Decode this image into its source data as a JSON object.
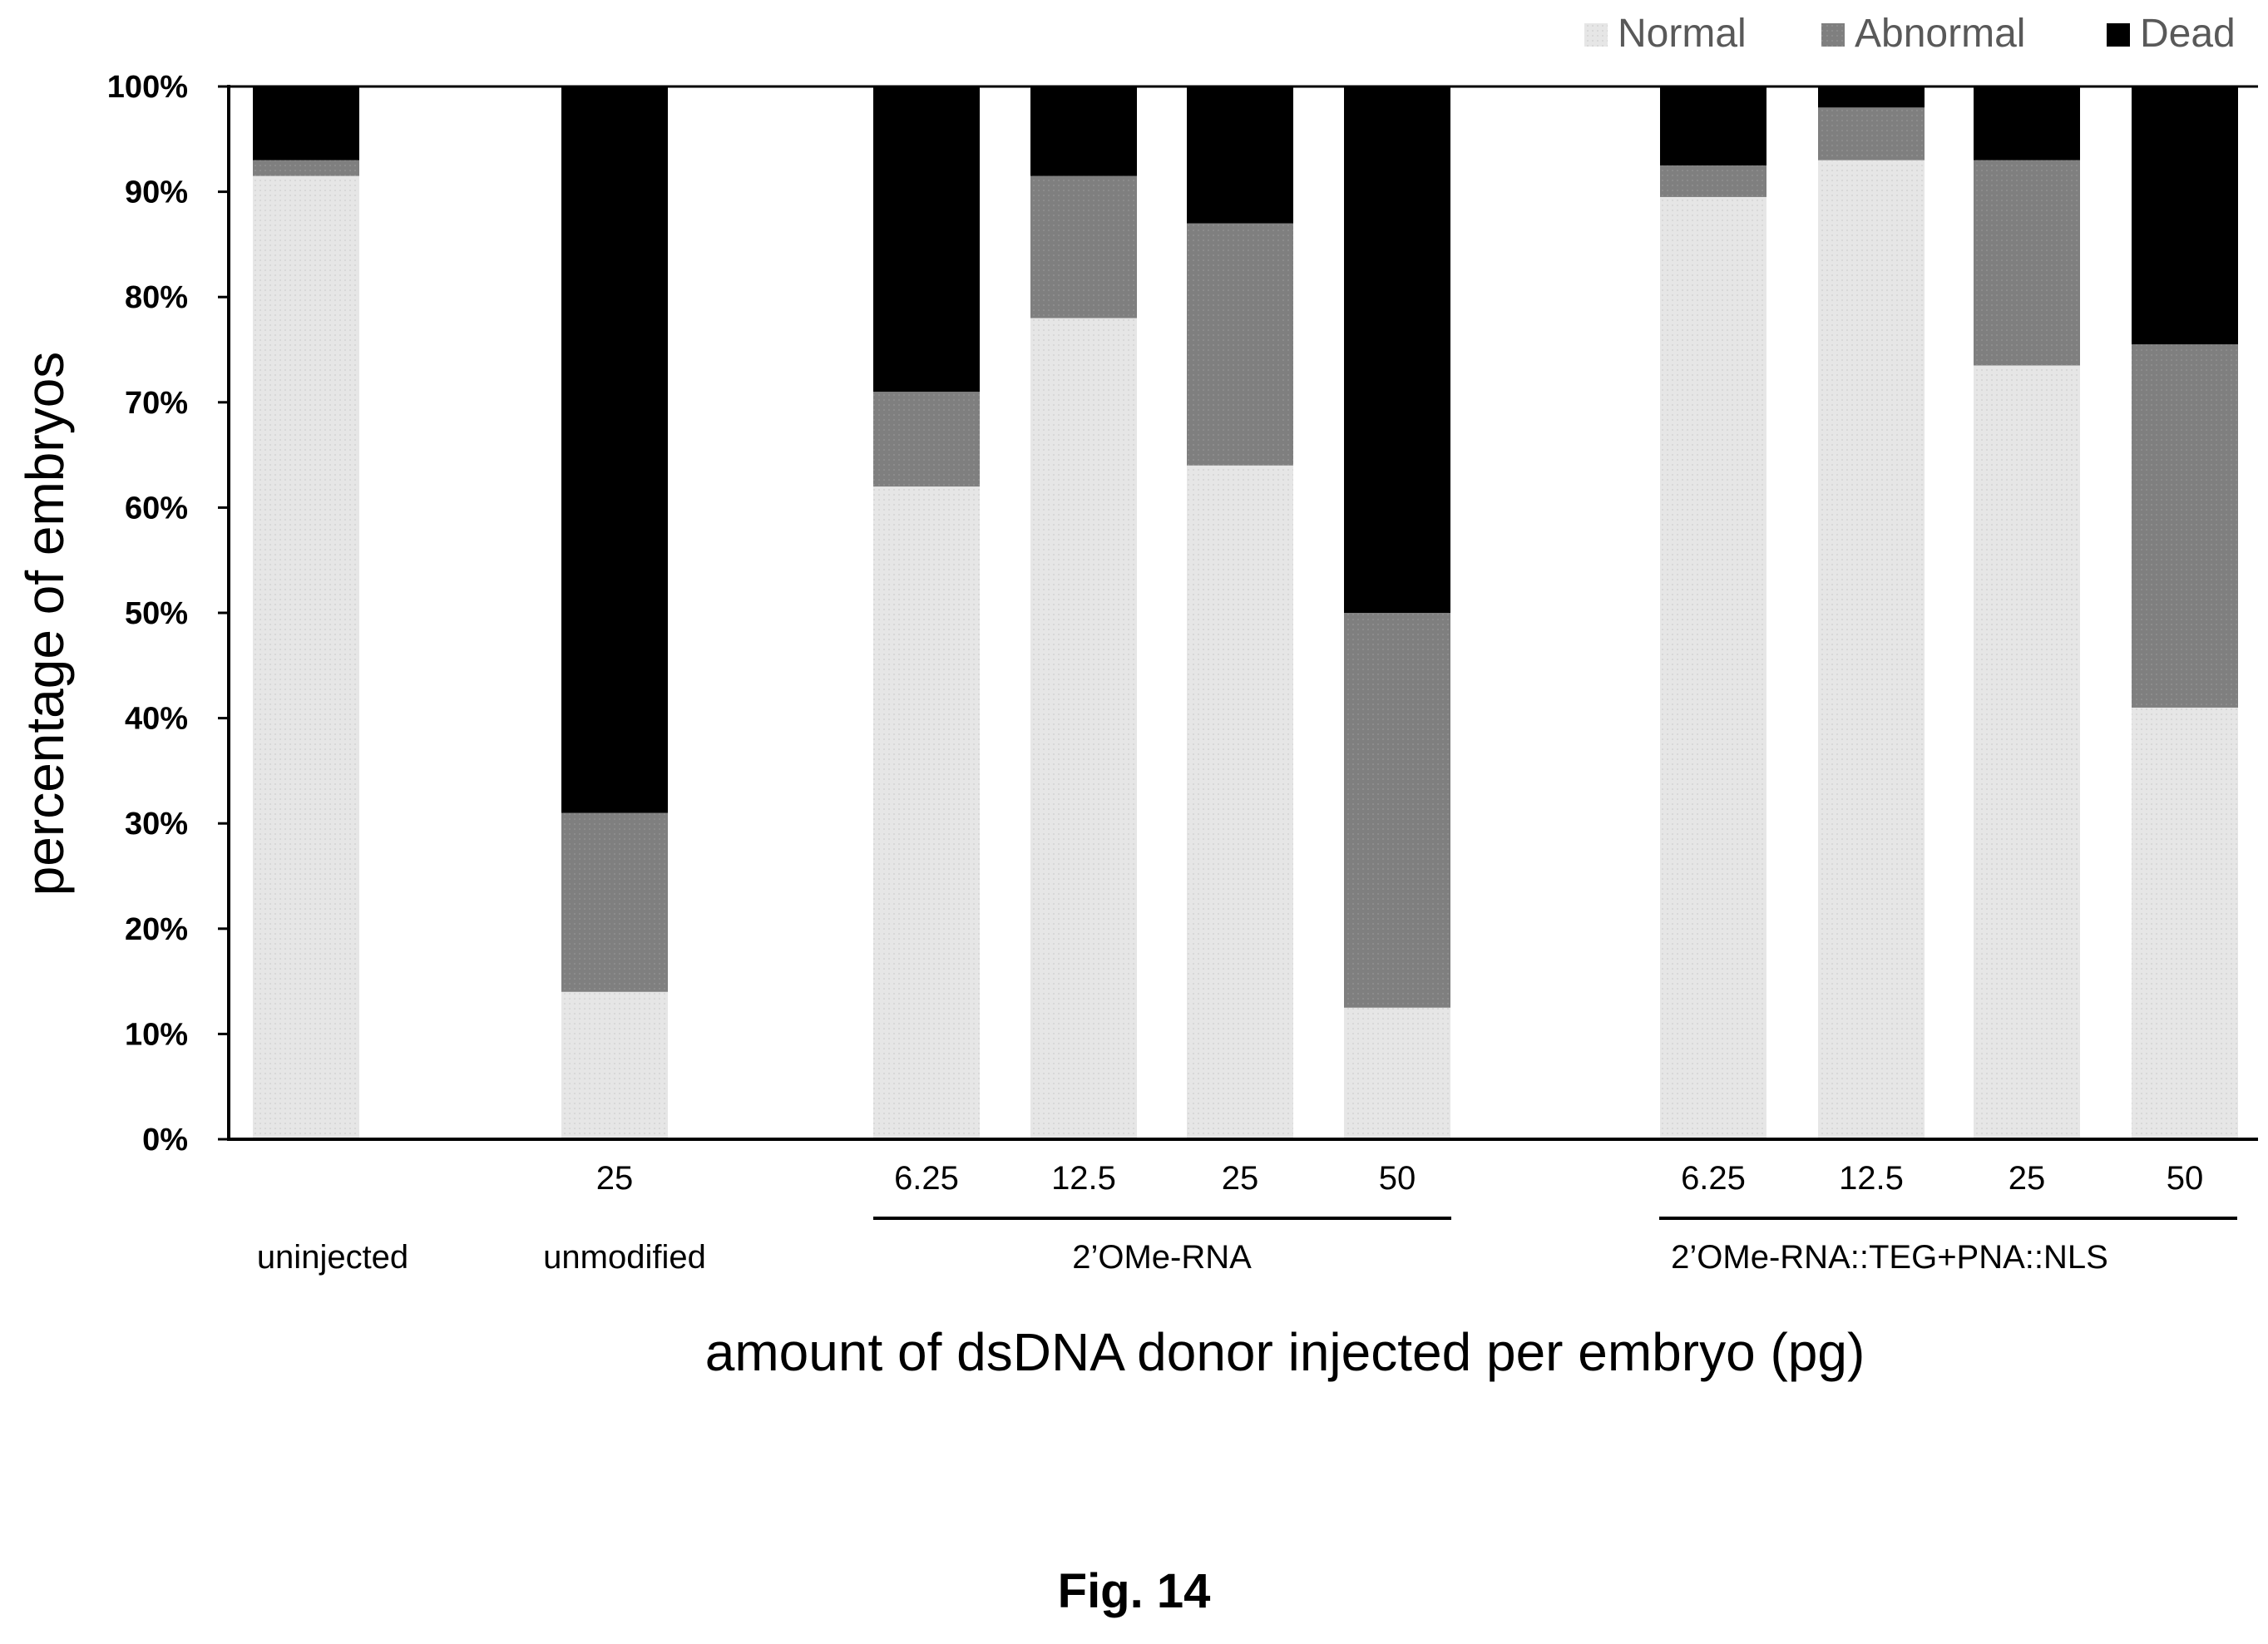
{
  "figure_label": "Fig. 14",
  "chart_data": {
    "type": "bar",
    "stacked": true,
    "ylabel": "percentage of embryos",
    "xlabel": "amount of dsDNA donor injected per embryo (pg)",
    "ylim": [
      0,
      100
    ],
    "yticks": [
      "0%",
      "10%",
      "20%",
      "30%",
      "40%",
      "50%",
      "60%",
      "70%",
      "80%",
      "90%",
      "100%"
    ],
    "legend_position": "top-right",
    "colors": {
      "Normal": "#e6e6e6",
      "Abnormal": "#7f7f7f",
      "Dead": "#000000"
    },
    "legend": [
      "Normal",
      "Abnormal",
      "Dead"
    ],
    "categories": [
      "",
      "25",
      "6.25",
      "12.5",
      "25",
      "50",
      "6.25",
      "12.5",
      "25",
      "50"
    ],
    "group_labels": [
      "uninjected",
      "unmodified",
      "2’OMe-RNA",
      "2’OMe-RNA::TEG+PNA::NLS"
    ],
    "series": [
      {
        "name": "Normal",
        "values": [
          91.5,
          14,
          62,
          78,
          64,
          12.5,
          89.5,
          93,
          73.5,
          41
        ]
      },
      {
        "name": "Abnormal",
        "values": [
          1.5,
          17,
          9,
          13.5,
          23,
          37.5,
          3,
          5,
          19.5,
          34.5
        ]
      },
      {
        "name": "Dead",
        "values": [
          7,
          69,
          29,
          8.5,
          13,
          50,
          7.5,
          2,
          7,
          24.5
        ]
      }
    ]
  }
}
